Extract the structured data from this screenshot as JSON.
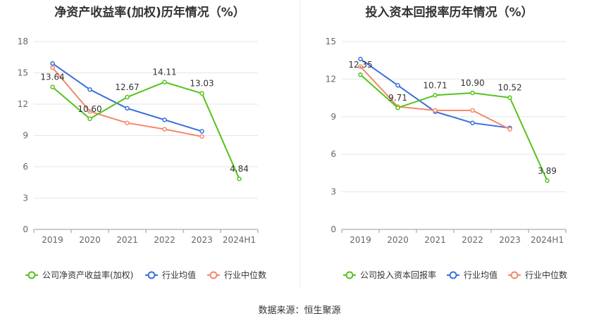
{
  "source_text": "数据来源：恒生聚源",
  "colors": {
    "company": "#52c41a",
    "avg": "#3a6fdb",
    "median": "#f4886a",
    "grid": "#e6e6e6",
    "axis": "#999999"
  },
  "chart_data": [
    {
      "type": "line",
      "title": "净资产收益率(加权)历年情况（%）",
      "categories": [
        "2019",
        "2020",
        "2021",
        "2022",
        "2023",
        "2024H1"
      ],
      "ylim": [
        0,
        18
      ],
      "yticks": [
        0,
        3,
        6,
        9,
        12,
        15,
        18
      ],
      "grid": true,
      "legend_position": "bottom",
      "series": [
        {
          "name": "公司净资产收益率(加权)",
          "values": [
            13.64,
            10.6,
            12.67,
            14.11,
            13.03,
            4.84
          ],
          "labels": [
            "13.64",
            "10.60",
            "12.67",
            "14.11",
            "13.03",
            "4.84"
          ]
        },
        {
          "name": "行业均值",
          "values": [
            15.9,
            13.4,
            11.6,
            10.5,
            9.4,
            null
          ]
        },
        {
          "name": "行业中位数",
          "values": [
            15.5,
            11.3,
            10.2,
            9.6,
            8.9,
            null
          ]
        }
      ]
    },
    {
      "type": "line",
      "title": "投入资本回报率历年情况（%）",
      "categories": [
        "2019",
        "2020",
        "2021",
        "2022",
        "2023",
        "2024H1"
      ],
      "ylim": [
        0,
        15
      ],
      "yticks": [
        0,
        3,
        6,
        9,
        12,
        15
      ],
      "grid": true,
      "legend_position": "bottom",
      "series": [
        {
          "name": "公司投入资本回报率",
          "values": [
            12.35,
            9.71,
            10.71,
            10.9,
            10.52,
            3.89
          ],
          "labels": [
            "12.35",
            "9.71",
            "10.71",
            "10.90",
            "10.52",
            "3.89"
          ]
        },
        {
          "name": "行业均值",
          "values": [
            13.6,
            11.5,
            9.4,
            8.5,
            8.1,
            null
          ]
        },
        {
          "name": "行业中位数",
          "values": [
            13.0,
            9.8,
            9.5,
            9.5,
            8.0,
            null
          ]
        }
      ]
    }
  ]
}
